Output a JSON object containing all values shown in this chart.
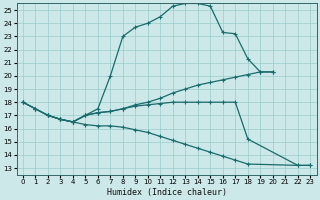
{
  "xlabel": "Humidex (Indice chaleur)",
  "bg_color": "#cce8e8",
  "grid_color": "#99cccc",
  "line_color": "#1a6b6b",
  "xlim": [
    -0.5,
    23.5
  ],
  "ylim": [
    12.5,
    25.5
  ],
  "xticks": [
    0,
    1,
    2,
    3,
    4,
    5,
    6,
    7,
    8,
    9,
    10,
    11,
    12,
    13,
    14,
    15,
    16,
    17,
    18,
    19,
    20,
    21,
    22,
    23
  ],
  "yticks": [
    13,
    14,
    15,
    16,
    17,
    18,
    19,
    20,
    21,
    22,
    23,
    24,
    25
  ],
  "series": [
    {
      "x": [
        0,
        1,
        2,
        3,
        4,
        5,
        6,
        7,
        8,
        9,
        10,
        11,
        12,
        13,
        14,
        15,
        16,
        17,
        18,
        19,
        20
      ],
      "y": [
        18.0,
        17.5,
        17.0,
        16.7,
        16.5,
        17.0,
        17.5,
        20.0,
        23.0,
        23.7,
        24.0,
        24.5,
        25.3,
        25.5,
        25.5,
        25.3,
        23.3,
        23.2,
        21.3,
        20.3,
        20.3
      ]
    },
    {
      "x": [
        0,
        1,
        2,
        3,
        4,
        5,
        6,
        7,
        8,
        9,
        10,
        11,
        12,
        13,
        14,
        15,
        16,
        17,
        18,
        19,
        20
      ],
      "y": [
        18.0,
        17.5,
        17.0,
        16.7,
        16.5,
        17.0,
        17.2,
        17.3,
        17.5,
        17.8,
        18.0,
        18.3,
        18.7,
        19.0,
        19.3,
        19.5,
        19.7,
        19.9,
        20.1,
        20.3,
        20.3
      ]
    },
    {
      "x": [
        0,
        1,
        2,
        3,
        4,
        5,
        6,
        7,
        8,
        9,
        10,
        11,
        12,
        13,
        14,
        15,
        16,
        17,
        18,
        22,
        23
      ],
      "y": [
        18.0,
        17.5,
        17.0,
        16.7,
        16.5,
        17.0,
        17.2,
        17.3,
        17.5,
        17.7,
        17.8,
        17.9,
        18.0,
        18.0,
        18.0,
        18.0,
        18.0,
        18.0,
        15.2,
        13.2,
        13.2
      ]
    },
    {
      "x": [
        2,
        3,
        4,
        5,
        6,
        7,
        8,
        9,
        10,
        11,
        12,
        13,
        14,
        15,
        16,
        17,
        18,
        22,
        23
      ],
      "y": [
        17.0,
        16.7,
        16.5,
        16.3,
        16.2,
        16.2,
        16.1,
        15.9,
        15.7,
        15.4,
        15.1,
        14.8,
        14.5,
        14.2,
        13.9,
        13.6,
        13.3,
        13.2,
        13.2
      ]
    }
  ]
}
